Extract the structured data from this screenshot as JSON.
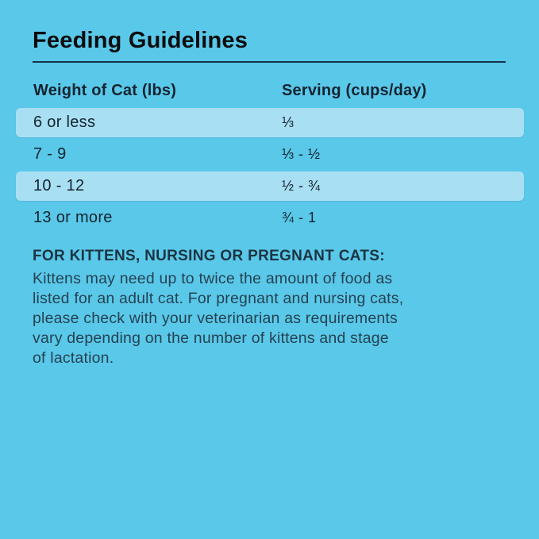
{
  "page": {
    "background_color": "#5AC8E9",
    "row_highlight_color": "#A9DFF3",
    "title_color": "#0B0C0E",
    "text_color": "#13242F"
  },
  "title": "Feeding Guidelines",
  "table": {
    "columns": [
      "Weight of Cat (lbs)",
      "Serving (cups/day)"
    ],
    "rows": [
      {
        "weight": "6 or less",
        "serving": "⅓",
        "highlighted": true
      },
      {
        "weight": "7 - 9",
        "serving": "⅓ - ½",
        "highlighted": false
      },
      {
        "weight": "10 - 12",
        "serving": "½ - ¾",
        "highlighted": true
      },
      {
        "weight": "13 or more",
        "serving": "¾ - 1",
        "highlighted": false
      }
    ]
  },
  "note": {
    "heading": "FOR KITTENS, NURSING OR PREGNANT CATS:",
    "lines": [
      "Kittens may need up to twice the amount of food as",
      "listed for an adult cat. For pregnant and nursing cats,",
      "please check with your veterinarian as requirements",
      "vary depending on the number of kittens and stage",
      "of lactation."
    ]
  }
}
